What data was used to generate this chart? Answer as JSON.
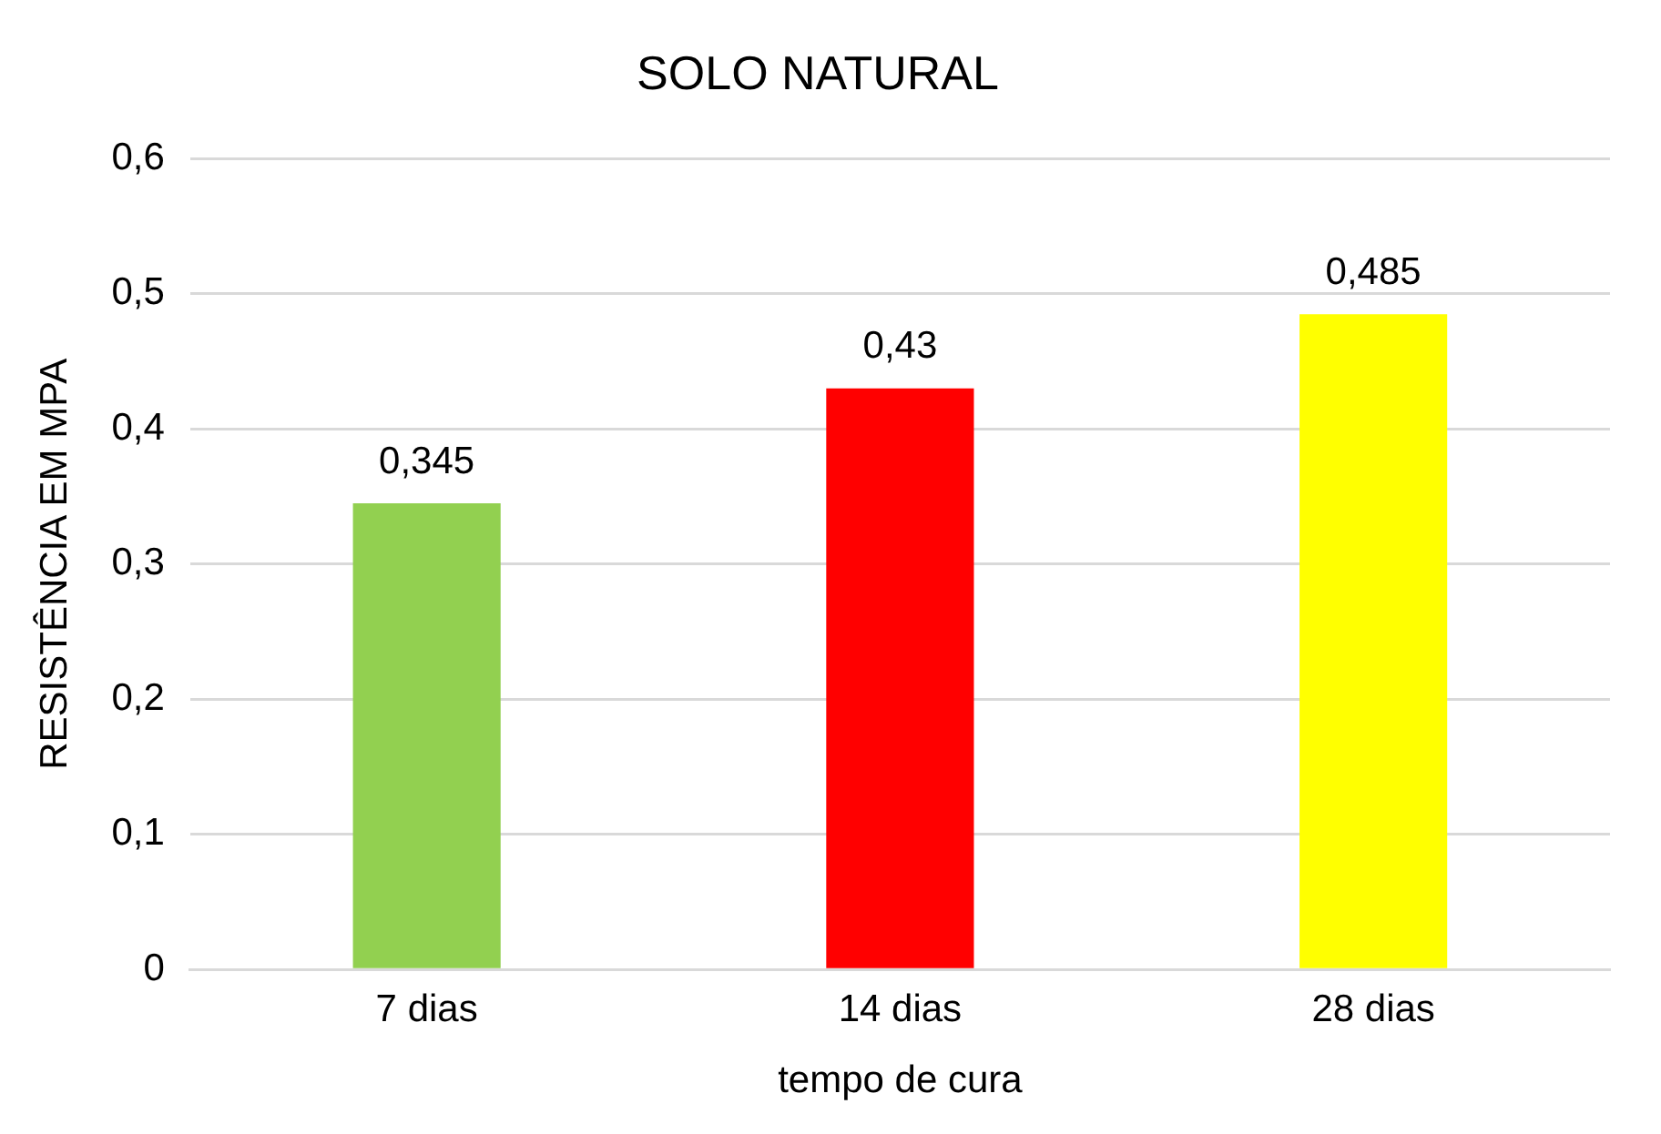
{
  "chart_data": {
    "type": "bar",
    "title": "SOLO NATURAL",
    "xlabel": "tempo de cura",
    "ylabel": "RESISTÊNCIA EM MPA",
    "categories": [
      "7 dias",
      "14 dias",
      "28 dias"
    ],
    "values": [
      0.345,
      0.43,
      0.485
    ],
    "colors": [
      "#92d050",
      "#ff0000",
      "#ffff00"
    ],
    "value_labels": [
      "0,345",
      "0,43",
      "0,485"
    ],
    "ylim": [
      0,
      0.6
    ],
    "yticks": [
      0,
      {
        "value": 0.1,
        "label": "0,1"
      },
      {
        "value": 0.2,
        "label": "0,2"
      },
      {
        "value": 0.3,
        "label": "0,3"
      },
      {
        "value": 0.4,
        "label": "0,4"
      },
      {
        "value": 0.5,
        "label": "0,5"
      },
      {
        "value": 0.6,
        "label": "0,6"
      }
    ],
    "grid": "y",
    "legend": false
  }
}
